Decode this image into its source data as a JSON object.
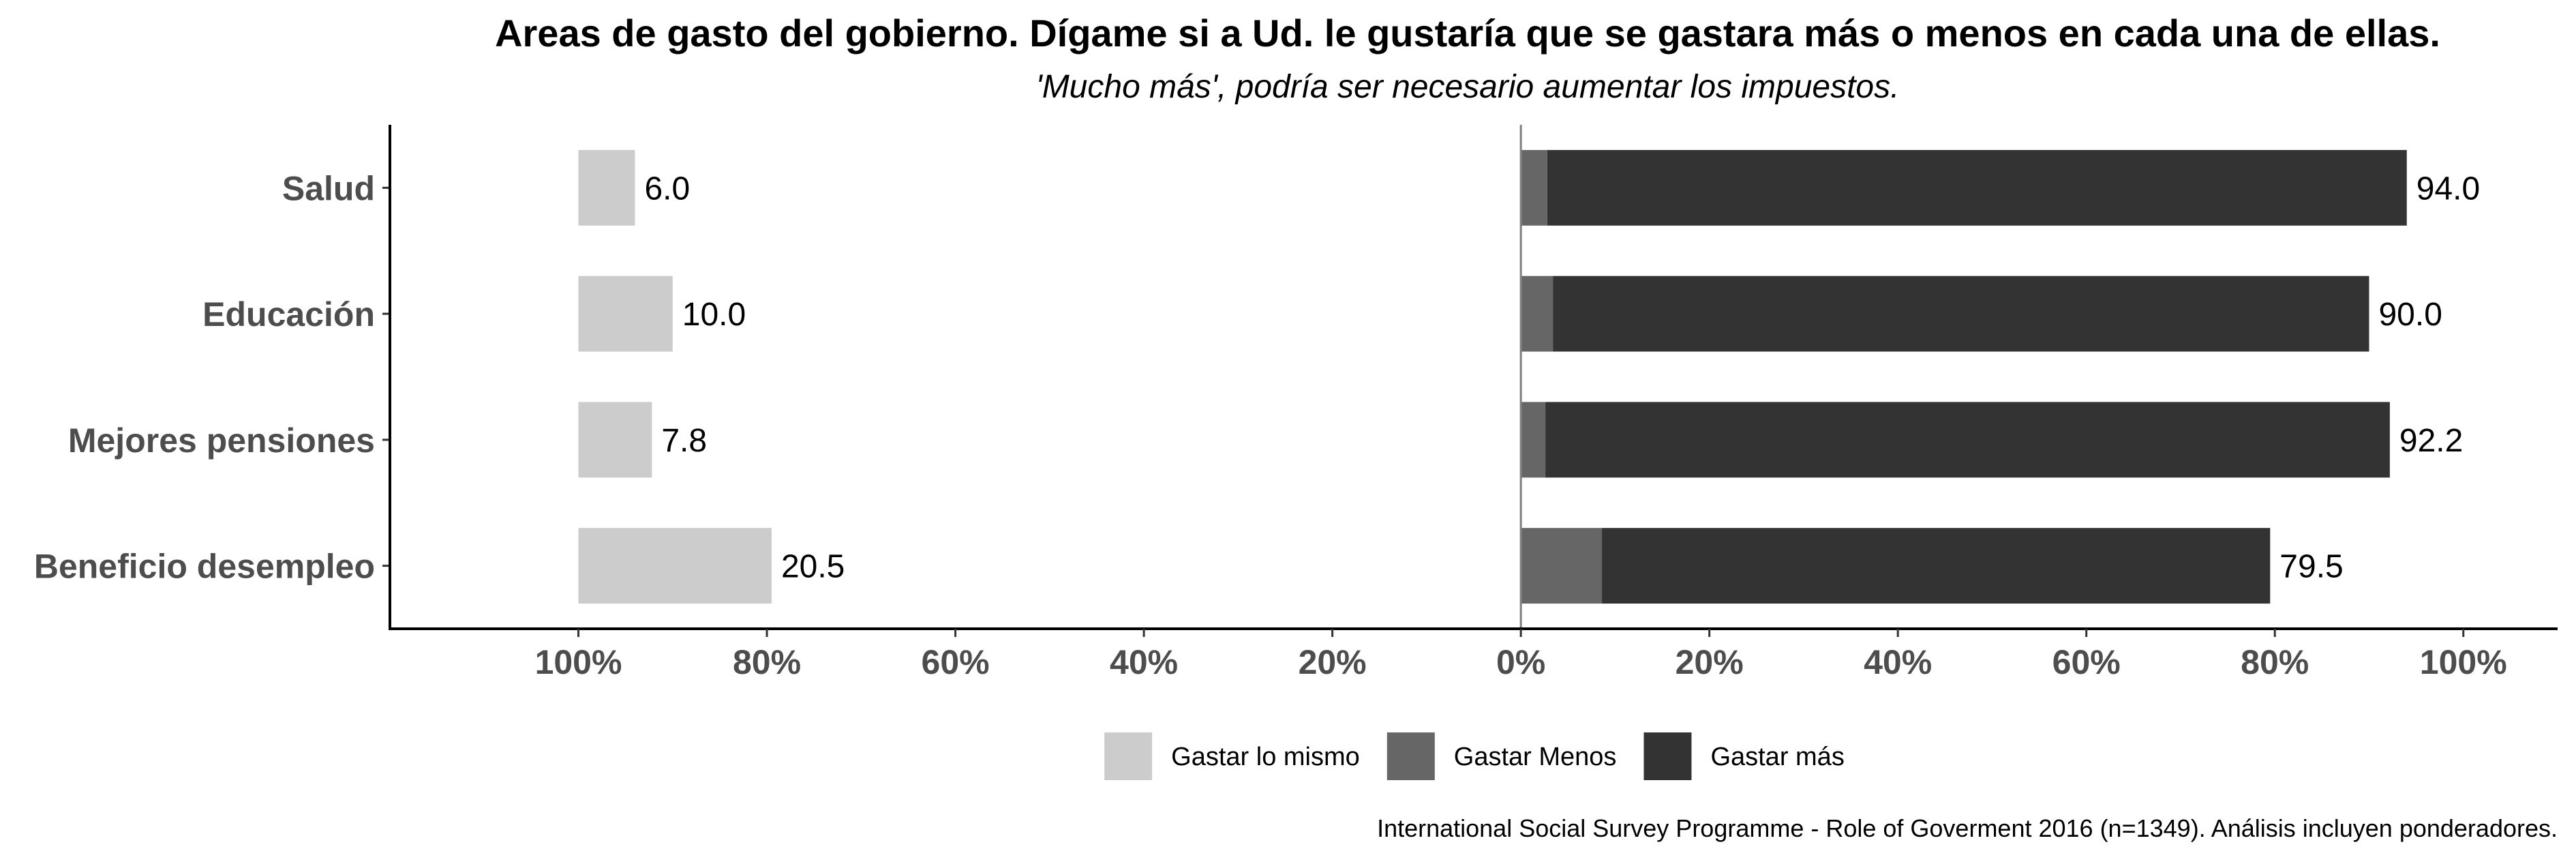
{
  "chart_data": {
    "type": "bar",
    "orientation": "horizontal-diverging",
    "title": "Areas de gasto del gobierno. Dígame si a Ud. le gustaría que se gastara más o menos en cada una de ellas.",
    "subtitle": "'Mucho más', podría ser necesario aumentar los impuestos.",
    "caption": "International Social Survey Programme - Role of Goverment 2016 (n=1349). Análisis incluyen ponderadores.",
    "categories": [
      "Salud",
      "Educación",
      "Mejores pensiones",
      "Beneficio desempleo"
    ],
    "x_ticks": [
      -100,
      -80,
      -60,
      -40,
      -20,
      0,
      20,
      40,
      60,
      80,
      100
    ],
    "x_tick_labels": [
      "100%",
      "80%",
      "60%",
      "40%",
      "20%",
      "0%",
      "20%",
      "40%",
      "60%",
      "80%",
      "100%"
    ],
    "xlim": [
      -120,
      110
    ],
    "series": [
      {
        "name": "Gastar lo mismo",
        "color": "#cccccc",
        "side": "left",
        "values": [
          6.0,
          10.0,
          7.8,
          20.5
        ]
      },
      {
        "name": "Gastar Menos",
        "color": "#666666",
        "side": "right",
        "values": [
          2.8,
          3.4,
          2.6,
          8.6
        ]
      },
      {
        "name": "Gastar más",
        "color": "#333333",
        "side": "right",
        "values": [
          91.2,
          86.6,
          89.6,
          70.9
        ]
      }
    ],
    "data_labels": {
      "left": [
        "6.0",
        "10.0",
        "7.8",
        "20.5"
      ],
      "right": [
        "94.0",
        "90.0",
        "92.2",
        "79.5"
      ]
    },
    "grid": false,
    "legend_position": "bottom"
  }
}
